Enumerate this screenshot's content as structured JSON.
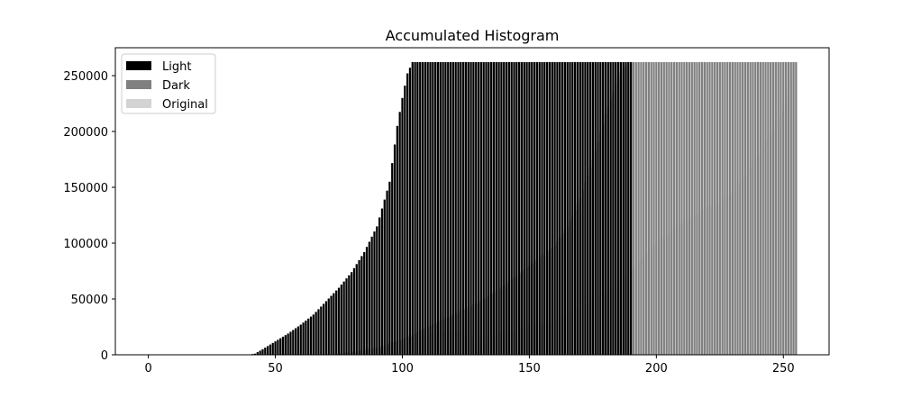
{
  "chart_data": {
    "type": "bar",
    "title": "Accumulated Histogram",
    "xlabel": "",
    "ylabel": "",
    "xlim": [
      -13,
      268
    ],
    "ylim": [
      0,
      275000
    ],
    "x_ticks": [
      0,
      50,
      100,
      150,
      200,
      250
    ],
    "y_ticks": [
      0,
      50000,
      100000,
      150000,
      200000,
      250000
    ],
    "x_tick_labels": [
      "0",
      "50",
      "100",
      "150",
      "200",
      "250"
    ],
    "y_tick_labels": [
      "0",
      "50000",
      "100000",
      "150000",
      "200000",
      "250000"
    ],
    "legend_position": "top-left",
    "grid": false,
    "x": {
      "start": 0,
      "end": 255,
      "step": 1
    },
    "series": [
      {
        "name": "Original",
        "color": "#d3d3d3",
        "anchors": [
          [
            0,
            0
          ],
          [
            64,
            0
          ],
          [
            75,
            1500
          ],
          [
            90,
            7000
          ],
          [
            100,
            14000
          ],
          [
            110,
            19000
          ],
          [
            120,
            22000
          ],
          [
            130,
            15000
          ],
          [
            140,
            20000
          ],
          [
            150,
            26000
          ],
          [
            160,
            30000
          ],
          [
            170,
            42000
          ],
          [
            180,
            55000
          ],
          [
            190,
            76000
          ],
          [
            200,
            100000
          ],
          [
            210,
            118000
          ],
          [
            220,
            132000
          ],
          [
            225,
            136000
          ],
          [
            230,
            146000
          ],
          [
            235,
            160000
          ],
          [
            240,
            178000
          ],
          [
            245,
            198000
          ],
          [
            248,
            211000
          ],
          [
            250,
            220000
          ],
          [
            252,
            235000
          ],
          [
            254,
            262144
          ],
          [
            255,
            262144
          ]
        ]
      },
      {
        "name": "Dark",
        "color": "#808080",
        "anchors": [
          [
            0,
            0
          ],
          [
            72,
            0
          ],
          [
            80,
            2500
          ],
          [
            90,
            6000
          ],
          [
            100,
            14000
          ],
          [
            110,
            25000
          ],
          [
            120,
            36000
          ],
          [
            130,
            47000
          ],
          [
            140,
            62000
          ],
          [
            150,
            80000
          ],
          [
            160,
            98000
          ],
          [
            165,
            115000
          ],
          [
            170,
            140000
          ],
          [
            175,
            175000
          ],
          [
            180,
            215000
          ],
          [
            185,
            250000
          ],
          [
            189,
            262144
          ],
          [
            255,
            262144
          ]
        ]
      },
      {
        "name": "Light",
        "color": "#000000",
        "anchors": [
          [
            0,
            0
          ],
          [
            39,
            0
          ],
          [
            42,
            1000
          ],
          [
            45,
            5000
          ],
          [
            50,
            12000
          ],
          [
            55,
            19000
          ],
          [
            60,
            27000
          ],
          [
            65,
            36000
          ],
          [
            70,
            48000
          ],
          [
            75,
            60000
          ],
          [
            80,
            74000
          ],
          [
            85,
            92000
          ],
          [
            90,
            115000
          ],
          [
            95,
            155000
          ],
          [
            98,
            205000
          ],
          [
            100,
            230000
          ],
          [
            102,
            252000
          ],
          [
            104,
            262144
          ],
          [
            190,
            262144
          ]
        ]
      }
    ]
  }
}
